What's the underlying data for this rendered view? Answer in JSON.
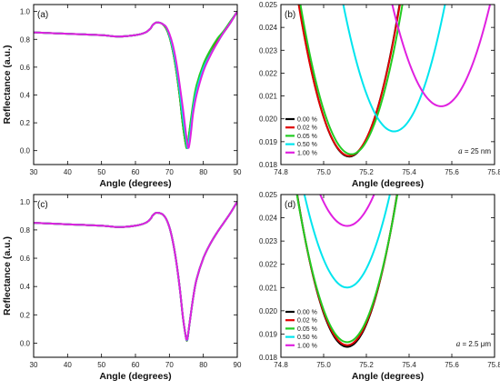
{
  "chart_data": [
    {
      "id": "a",
      "panel_label": "(a)",
      "type": "line",
      "xlabel": "Angle (degrees)",
      "ylabel": "Reflectance (a.u.)",
      "xlim": [
        30,
        90
      ],
      "ylim": [
        -0.1,
        1.05
      ],
      "xticks": [
        "30",
        "40",
        "50",
        "60",
        "70",
        "80",
        "90"
      ],
      "yticks": [
        "0.0",
        "0.2",
        "0.4",
        "0.6",
        "0.8",
        "1.0"
      ],
      "grid": false,
      "series": [
        {
          "name": "0.00 %",
          "color": "#000000",
          "x": [
            30,
            40,
            50,
            55,
            60,
            63,
            64.5,
            65,
            66,
            67,
            68,
            69,
            70,
            71,
            72,
            73,
            74,
            74.8,
            75.1,
            75.4,
            76,
            77,
            78,
            80,
            82,
            84,
            86,
            88,
            90
          ],
          "y": [
            0.85,
            0.84,
            0.83,
            0.82,
            0.83,
            0.85,
            0.88,
            0.9,
            0.92,
            0.92,
            0.91,
            0.88,
            0.82,
            0.72,
            0.58,
            0.4,
            0.18,
            0.05,
            0.018,
            0.04,
            0.15,
            0.32,
            0.45,
            0.6,
            0.7,
            0.78,
            0.85,
            0.92,
            1.0
          ]
        },
        {
          "name": "0.02 %",
          "color": "#e00000",
          "x": [
            30,
            40,
            50,
            55,
            60,
            63,
            64.5,
            65,
            66,
            67,
            68,
            69,
            70,
            71,
            72,
            73,
            74,
            74.8,
            75.1,
            75.4,
            76,
            77,
            78,
            80,
            82,
            84,
            86,
            88,
            90
          ],
          "y": [
            0.85,
            0.84,
            0.83,
            0.82,
            0.83,
            0.85,
            0.88,
            0.9,
            0.92,
            0.92,
            0.91,
            0.88,
            0.82,
            0.72,
            0.58,
            0.4,
            0.18,
            0.05,
            0.018,
            0.04,
            0.15,
            0.32,
            0.45,
            0.6,
            0.7,
            0.78,
            0.85,
            0.92,
            1.0
          ]
        },
        {
          "name": "0.05 %",
          "color": "#22cc22",
          "x": [
            30,
            40,
            50,
            55,
            60,
            63,
            64.5,
            65,
            66,
            67,
            68,
            69,
            70,
            71,
            72,
            73,
            74,
            74.8,
            75.1,
            75.4,
            76,
            77,
            78,
            80,
            82,
            84,
            86,
            88,
            90
          ],
          "y": [
            0.85,
            0.84,
            0.83,
            0.82,
            0.83,
            0.85,
            0.88,
            0.9,
            0.92,
            0.92,
            0.91,
            0.88,
            0.82,
            0.72,
            0.58,
            0.4,
            0.18,
            0.05,
            0.0185,
            0.04,
            0.16,
            0.34,
            0.47,
            0.62,
            0.72,
            0.8,
            0.86,
            0.93,
            1.0
          ]
        },
        {
          "name": "0.50 %",
          "color": "#00e5ee",
          "x": [
            30,
            40,
            50,
            55,
            60,
            63,
            64.5,
            65,
            66,
            67,
            68,
            69,
            70,
            71,
            72,
            73,
            74,
            75,
            75.3,
            75.6,
            76.2,
            77,
            78,
            80,
            82,
            84,
            86,
            88,
            90
          ],
          "y": [
            0.85,
            0.84,
            0.83,
            0.82,
            0.83,
            0.85,
            0.88,
            0.9,
            0.92,
            0.92,
            0.91,
            0.89,
            0.83,
            0.74,
            0.61,
            0.44,
            0.24,
            0.07,
            0.02,
            0.04,
            0.14,
            0.3,
            0.43,
            0.59,
            0.69,
            0.77,
            0.85,
            0.92,
            1.0
          ]
        },
        {
          "name": "1.00 %",
          "color": "#e020e0",
          "x": [
            30,
            40,
            50,
            55,
            60,
            63,
            64.5,
            65,
            66,
            67,
            68,
            69,
            70,
            71,
            72,
            73,
            74,
            75,
            75.55,
            76,
            76.5,
            77,
            78,
            80,
            82,
            84,
            86,
            88,
            90
          ],
          "y": [
            0.85,
            0.84,
            0.83,
            0.82,
            0.83,
            0.85,
            0.88,
            0.9,
            0.92,
            0.92,
            0.91,
            0.89,
            0.84,
            0.76,
            0.64,
            0.48,
            0.3,
            0.1,
            0.02,
            0.06,
            0.16,
            0.27,
            0.4,
            0.57,
            0.68,
            0.77,
            0.85,
            0.92,
            1.0
          ]
        }
      ]
    },
    {
      "id": "b",
      "panel_label": "(b)",
      "type": "line",
      "xlabel": "Angle (degrees)",
      "ylabel": "",
      "xlim": [
        74.8,
        75.8
      ],
      "ylim": [
        0.018,
        0.025
      ],
      "xticks": [
        "74.8",
        "75.0",
        "75.2",
        "75.4",
        "75.6",
        "75.8"
      ],
      "yticks": [
        "0.018",
        "0.019",
        "0.020",
        "0.021",
        "0.022",
        "0.023",
        "0.024",
        "0.025"
      ],
      "grid": false,
      "legend": {
        "placement": "bottom-left"
      },
      "annotation": {
        "italic": "a",
        "text": " = 25 nm"
      },
      "series": [
        {
          "name": "0.00 %",
          "color": "#000000",
          "center": 75.12,
          "min": 0.01835,
          "k": 0.12
        },
        {
          "name": "0.02 %",
          "color": "#e00000",
          "center": 75.12,
          "min": 0.01838,
          "k": 0.118
        },
        {
          "name": "0.05 %",
          "color": "#22cc22",
          "center": 75.13,
          "min": 0.01845,
          "k": 0.115
        },
        {
          "name": "0.50 %",
          "color": "#00e5ee",
          "center": 75.33,
          "min": 0.01945,
          "k": 0.098
        },
        {
          "name": "1.00 %",
          "color": "#e020e0",
          "center": 75.55,
          "min": 0.02055,
          "k": 0.085
        }
      ]
    },
    {
      "id": "c",
      "panel_label": "(c)",
      "type": "line",
      "xlabel": "Angle (degrees)",
      "ylabel": "Reflectance (a.u.)",
      "xlim": [
        30,
        90
      ],
      "ylim": [
        -0.1,
        1.05
      ],
      "xticks": [
        "30",
        "40",
        "50",
        "60",
        "70",
        "80",
        "90"
      ],
      "yticks": [
        "0.0",
        "0.2",
        "0.4",
        "0.6",
        "0.8",
        "1.0"
      ],
      "grid": false,
      "series": [
        {
          "name": "0.00 %",
          "color": "#000000",
          "x": [
            30,
            40,
            50,
            55,
            60,
            63,
            64.5,
            65,
            66,
            67,
            68,
            69,
            70,
            71,
            72,
            73,
            74,
            74.8,
            75.1,
            75.4,
            76,
            77,
            78,
            80,
            82,
            84,
            86,
            88,
            90
          ],
          "y": [
            0.85,
            0.84,
            0.83,
            0.82,
            0.83,
            0.85,
            0.88,
            0.9,
            0.92,
            0.92,
            0.91,
            0.88,
            0.82,
            0.72,
            0.58,
            0.4,
            0.18,
            0.05,
            0.018,
            0.04,
            0.15,
            0.32,
            0.45,
            0.6,
            0.7,
            0.78,
            0.85,
            0.92,
            1.0
          ]
        },
        {
          "name": "0.02 %",
          "color": "#e00000",
          "x": [
            30,
            40,
            50,
            55,
            60,
            63,
            64.5,
            65,
            66,
            67,
            68,
            69,
            70,
            71,
            72,
            73,
            74,
            74.8,
            75.1,
            75.4,
            76,
            77,
            78,
            80,
            82,
            84,
            86,
            88,
            90
          ],
          "y": [
            0.85,
            0.84,
            0.83,
            0.82,
            0.83,
            0.85,
            0.88,
            0.9,
            0.92,
            0.92,
            0.91,
            0.88,
            0.82,
            0.72,
            0.58,
            0.4,
            0.18,
            0.05,
            0.018,
            0.04,
            0.15,
            0.32,
            0.45,
            0.6,
            0.7,
            0.78,
            0.85,
            0.92,
            1.0
          ]
        },
        {
          "name": "0.05 %",
          "color": "#22cc22",
          "x": [
            30,
            40,
            50,
            55,
            60,
            63,
            64.5,
            65,
            66,
            67,
            68,
            69,
            70,
            71,
            72,
            73,
            74,
            74.8,
            75.1,
            75.4,
            76,
            77,
            78,
            80,
            82,
            84,
            86,
            88,
            90
          ],
          "y": [
            0.85,
            0.84,
            0.83,
            0.82,
            0.83,
            0.85,
            0.88,
            0.9,
            0.92,
            0.92,
            0.91,
            0.88,
            0.82,
            0.72,
            0.58,
            0.4,
            0.18,
            0.05,
            0.0186,
            0.04,
            0.15,
            0.32,
            0.45,
            0.6,
            0.7,
            0.78,
            0.85,
            0.92,
            1.0
          ]
        },
        {
          "name": "0.50 %",
          "color": "#00e5ee",
          "x": [
            30,
            40,
            50,
            55,
            60,
            63,
            64.5,
            65,
            66,
            67,
            68,
            69,
            70,
            71,
            72,
            73,
            74,
            74.8,
            75.1,
            75.4,
            76,
            77,
            78,
            80,
            82,
            84,
            86,
            88,
            90
          ],
          "y": [
            0.85,
            0.84,
            0.83,
            0.82,
            0.83,
            0.85,
            0.88,
            0.9,
            0.92,
            0.92,
            0.91,
            0.88,
            0.82,
            0.72,
            0.58,
            0.4,
            0.18,
            0.05,
            0.021,
            0.04,
            0.15,
            0.32,
            0.45,
            0.6,
            0.7,
            0.78,
            0.85,
            0.92,
            1.0
          ]
        },
        {
          "name": "1.00 %",
          "color": "#e020e0",
          "x": [
            30,
            40,
            50,
            55,
            60,
            63,
            64.5,
            65,
            66,
            67,
            68,
            69,
            70,
            71,
            72,
            73,
            74,
            74.8,
            75.1,
            75.4,
            76,
            77,
            78,
            80,
            82,
            84,
            86,
            88,
            90
          ],
          "y": [
            0.85,
            0.84,
            0.83,
            0.82,
            0.83,
            0.85,
            0.88,
            0.9,
            0.92,
            0.92,
            0.91,
            0.88,
            0.82,
            0.72,
            0.58,
            0.4,
            0.18,
            0.05,
            0.0236,
            0.045,
            0.15,
            0.32,
            0.45,
            0.6,
            0.7,
            0.78,
            0.85,
            0.92,
            1.0
          ]
        }
      ]
    },
    {
      "id": "d",
      "panel_label": "(d)",
      "type": "line",
      "xlabel": "Angle (degrees)",
      "ylabel": "",
      "xlim": [
        74.8,
        75.8
      ],
      "ylim": [
        0.018,
        0.025
      ],
      "xticks": [
        "74.8",
        "75.0",
        "75.2",
        "75.4",
        "75.6",
        "75.8"
      ],
      "yticks": [
        "0.018",
        "0.019",
        "0.020",
        "0.021",
        "0.022",
        "0.023",
        "0.024",
        "0.025"
      ],
      "grid": false,
      "legend": {
        "placement": "bottom-left"
      },
      "annotation": {
        "italic": "a",
        "text": " = 2.5 μm"
      },
      "series": [
        {
          "name": "0.00 %",
          "color": "#000000",
          "center": 75.11,
          "min": 0.01845,
          "k": 0.12
        },
        {
          "name": "0.02 %",
          "color": "#e00000",
          "center": 75.11,
          "min": 0.01852,
          "k": 0.118
        },
        {
          "name": "0.05 %",
          "color": "#22cc22",
          "center": 75.11,
          "min": 0.01865,
          "k": 0.115
        },
        {
          "name": "0.50 %",
          "color": "#00e5ee",
          "center": 75.11,
          "min": 0.021,
          "k": 0.1
        },
        {
          "name": "1.00 %",
          "color": "#e020e0",
          "center": 75.11,
          "min": 0.02365,
          "k": 0.085
        }
      ]
    }
  ]
}
